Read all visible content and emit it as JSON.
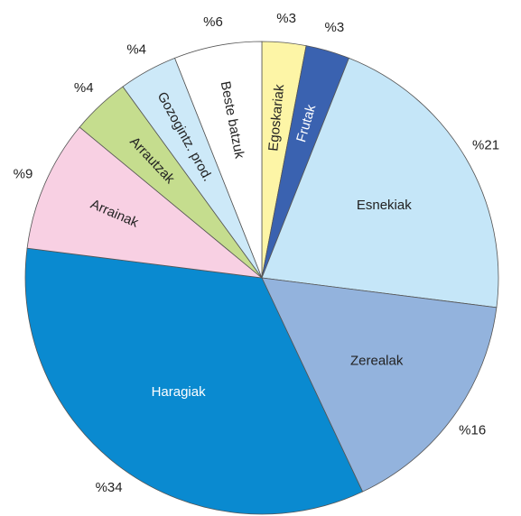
{
  "chart_data": {
    "type": "pie",
    "categories": [
      "Egoskariak",
      "Frutak",
      "Esnekiak",
      "Zerealak",
      "Haragiak",
      "Arrainak",
      "Arrautzak",
      "Gozogintz. prod.",
      "Beste batzuk"
    ],
    "values": [
      3,
      3,
      21,
      16,
      34,
      9,
      4,
      4,
      6
    ],
    "value_labels": [
      "%3",
      "%3",
      "%21",
      "%16",
      "%34",
      "%9",
      "%4",
      "%4",
      "%6"
    ],
    "colors": [
      "#fdf5a6",
      "#3a62b0",
      "#c5e6f8",
      "#93b3dd",
      "#0a8ad0",
      "#f8d0e3",
      "#c5dd8e",
      "#cde9f8",
      "#ffffff"
    ]
  }
}
